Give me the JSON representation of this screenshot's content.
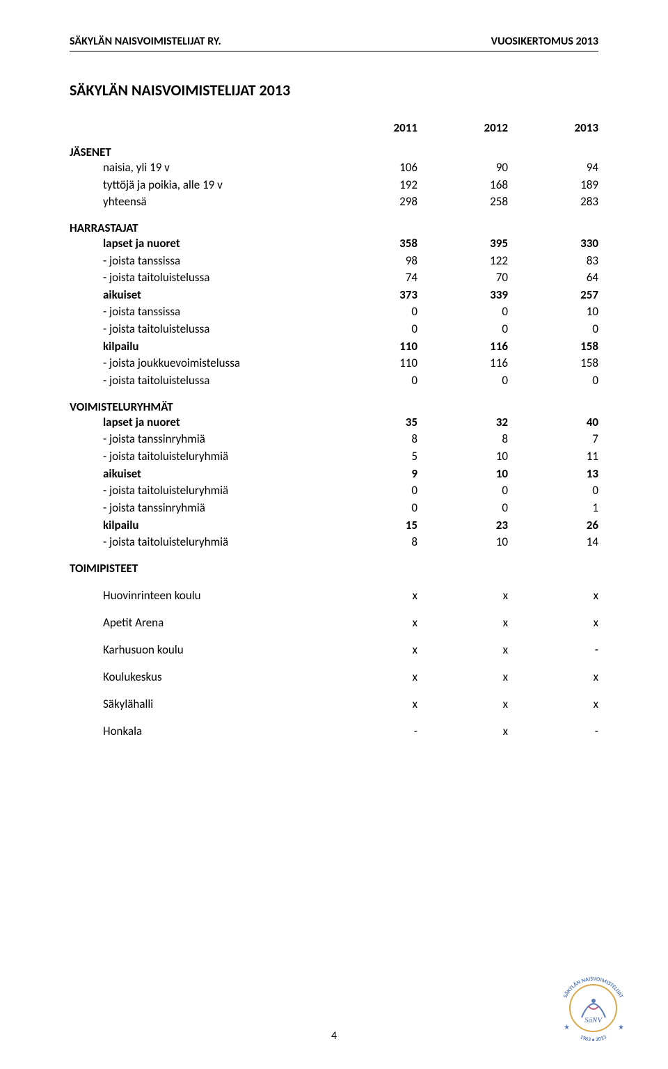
{
  "header": {
    "org": "SÄKYLÄN NAISVOIMISTELIJAT RY.",
    "report": "VUOSIKERTOMUS 2013"
  },
  "title": "SÄKYLÄN NAISVOIMISTELIJAT 2013",
  "years": [
    "2011",
    "2012",
    "2013"
  ],
  "sections": {
    "jasenet": {
      "title": "JÄSENET",
      "rows": [
        {
          "label": "naisia, yli 19 v",
          "vals": [
            "106",
            "90",
            "94"
          ],
          "bold": false
        },
        {
          "label": "tyttöjä ja poikia, alle 19 v",
          "vals": [
            "192",
            "168",
            "189"
          ],
          "bold": false
        },
        {
          "label": "yhteensä",
          "vals": [
            "298",
            "258",
            "283"
          ],
          "bold": false
        }
      ]
    },
    "harrastajat": {
      "title": "HARRASTAJAT",
      "rows": [
        {
          "label": "lapset ja nuoret",
          "vals": [
            "358",
            "395",
            "330"
          ],
          "bold": true
        },
        {
          "label": "-   joista tanssissa",
          "vals": [
            "98",
            "122",
            "83"
          ],
          "bold": false
        },
        {
          "label": "-   joista taitoluistelussa",
          "vals": [
            "74",
            "70",
            "64"
          ],
          "bold": false
        },
        {
          "label": "aikuiset",
          "vals": [
            "373",
            "339",
            "257"
          ],
          "bold": true
        },
        {
          "label": "-   joista tanssissa",
          "vals": [
            "0",
            "0",
            "10"
          ],
          "bold": false
        },
        {
          "label": "-   joista taitoluistelussa",
          "vals": [
            "0",
            "0",
            "0"
          ],
          "bold": false
        },
        {
          "label": "kilpailu",
          "vals": [
            "110",
            "116",
            "158"
          ],
          "bold": true
        },
        {
          "label": "-   joista joukkuevoimistelussa",
          "vals": [
            "110",
            "116",
            "158"
          ],
          "bold": false
        },
        {
          "label": "-   joista taitoluistelussa",
          "vals": [
            "0",
            "0",
            "0"
          ],
          "bold": false
        }
      ]
    },
    "voimisteluryhmat": {
      "title": "VOIMISTELURYHMÄT",
      "rows": [
        {
          "label": "lapset ja nuoret",
          "vals": [
            "35",
            "32",
            "40"
          ],
          "bold": true
        },
        {
          "label": "-   joista tanssinryhmiä",
          "vals": [
            "8",
            "8",
            "7"
          ],
          "bold": false
        },
        {
          "label": "-   joista taitoluisteluryhmiä",
          "vals": [
            "5",
            "10",
            "11"
          ],
          "bold": false
        },
        {
          "label": "aikuiset",
          "vals": [
            "9",
            "10",
            "13"
          ],
          "bold": true
        },
        {
          "label": "-   joista taitoluisteluryhmiä",
          "vals": [
            "0",
            "0",
            "0"
          ],
          "bold": false
        },
        {
          "label": "-   joista tanssinryhmiä",
          "vals": [
            "0",
            "0",
            "1"
          ],
          "bold": false
        },
        {
          "label": "kilpailu",
          "vals": [
            "15",
            "23",
            "26"
          ],
          "bold": true
        },
        {
          "label": "-   joista taitoluisteluryhmiä",
          "vals": [
            "8",
            "10",
            "14"
          ],
          "bold": false
        }
      ]
    },
    "toimipisteet": {
      "title": "TOIMIPISTEET",
      "rows": [
        {
          "label": "Huovinrinteen koulu",
          "vals": [
            "x",
            "x",
            "x"
          ]
        },
        {
          "label": "Apetit Arena",
          "vals": [
            "x",
            "x",
            "x"
          ]
        },
        {
          "label": "Karhusuon koulu",
          "vals": [
            "x",
            "x",
            "-"
          ]
        },
        {
          "label": "Koulukeskus",
          "vals": [
            "x",
            "x",
            "x"
          ]
        },
        {
          "label": "Säkylähalli",
          "vals": [
            "x",
            "x",
            "x"
          ]
        },
        {
          "label": "Honkala",
          "vals": [
            "-",
            "x",
            "-"
          ]
        }
      ]
    }
  },
  "page_number": "4",
  "logo": {
    "top_text": "SÄKYLÄN NAISVOIMISTELIJAT",
    "bottom_text": "1963 • 2013",
    "ring_color": "#5a7cb8",
    "inner_border_color": "#d9a94e",
    "inner_text": "SäNV"
  },
  "colors": {
    "text": "#000000",
    "background": "#ffffff"
  }
}
